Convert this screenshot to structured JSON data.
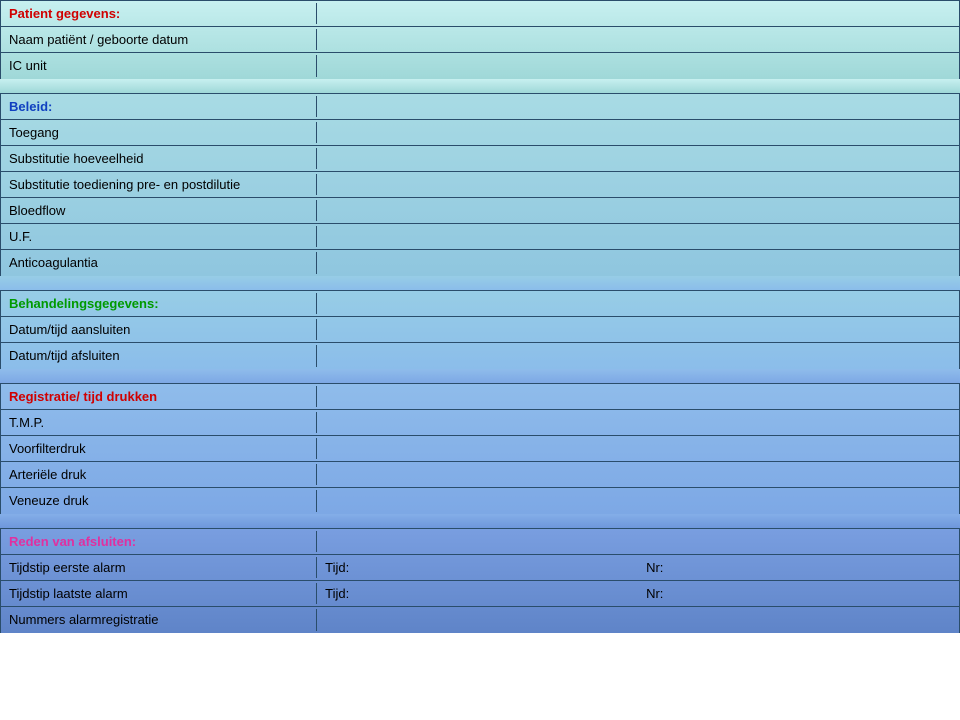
{
  "section1": {
    "header": "Patient gegevens:",
    "rows": [
      {
        "label": "Naam patiënt / geboorte datum"
      },
      {
        "label": "IC unit"
      }
    ]
  },
  "section2": {
    "header": "Beleid:",
    "rows": [
      {
        "label": "Toegang"
      },
      {
        "label": "Substitutie hoeveelheid"
      },
      {
        "label": "Substitutie toediening pre- en postdilutie"
      },
      {
        "label": "Bloedflow"
      },
      {
        "label": "U.F."
      },
      {
        "label": "Anticoagulantia"
      }
    ]
  },
  "section3": {
    "header": "Behandelingsgegevens:",
    "rows": [
      {
        "label": "Datum/tijd aansluiten"
      },
      {
        "label": "Datum/tijd afsluiten"
      }
    ]
  },
  "section4": {
    "header": "Registratie/ tijd drukken",
    "rows": [
      {
        "label": "T.M.P."
      },
      {
        "label": "Voorfilterdruk"
      },
      {
        "label": "Arteriële druk"
      },
      {
        "label": "Veneuze druk"
      }
    ]
  },
  "section5": {
    "header": "Reden van afsluiten:",
    "rows": [
      {
        "label": "Tijdstip eerste alarm",
        "c1": "Tijd:",
        "c2": "Nr:"
      },
      {
        "label": "Tijdstip laatste alarm",
        "c1": "Tijd:",
        "c2": "Nr:"
      },
      {
        "label": "Nummers alarmregistratie"
      }
    ]
  },
  "colors": {
    "border": "#2a4d6b",
    "teal_top": "#c7f0f0",
    "blue_bottom": "#5f84c8"
  }
}
